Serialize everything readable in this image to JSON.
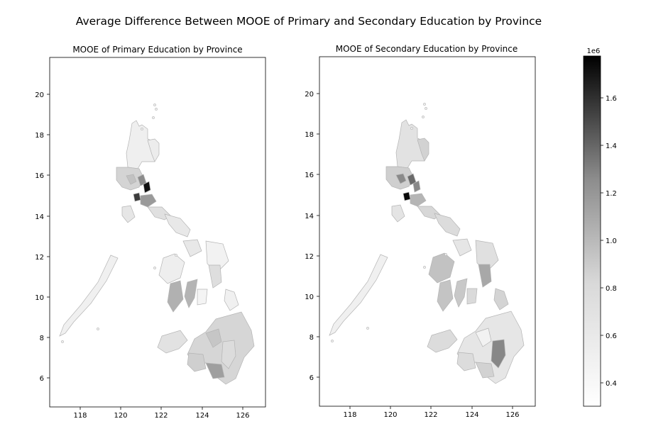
{
  "figure": {
    "title": "Average Difference Between MOOE of Primary and Secondary Education by Province"
  },
  "maps": [
    {
      "title": "MOOE of Primary Education by Province",
      "xlim": [
        116.4,
        127.1
      ],
      "ylim": [
        4.6,
        21.9
      ],
      "xticks": [
        "118",
        "120",
        "122",
        "124",
        "126"
      ],
      "yticks": [
        "6",
        "8",
        "10",
        "12",
        "14",
        "16",
        "18",
        "20"
      ]
    },
    {
      "title": "MOOE of Secondary Education by Province",
      "xlim": [
        116.4,
        127.1
      ],
      "ylim": [
        4.6,
        21.9
      ],
      "xticks": [
        "118",
        "120",
        "122",
        "124",
        "126"
      ],
      "yticks": [
        "6",
        "8",
        "10",
        "12",
        "14",
        "16",
        "18",
        "20"
      ]
    }
  ],
  "colorbar": {
    "min": 0.3,
    "max": 1.77,
    "offset_label": "1e6",
    "ticks": [
      "0.4",
      "0.6",
      "0.8",
      "1.0",
      "1.2",
      "1.4",
      "1.6"
    ],
    "colormap": "Greys",
    "color_low": "#ffffff",
    "color_high": "#000000"
  },
  "colors": {
    "province_edge": "#b4b4b4",
    "axis": "#000000"
  }
}
